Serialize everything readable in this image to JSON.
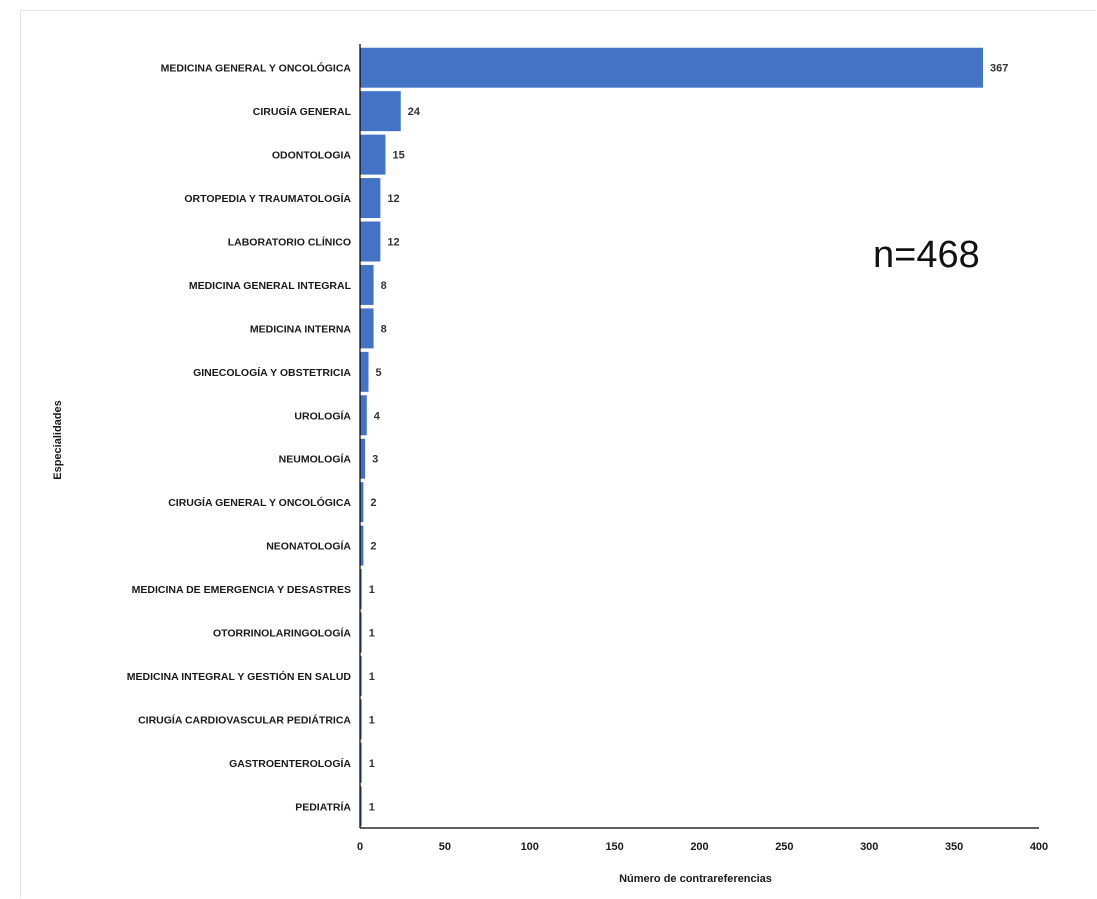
{
  "chart_data": {
    "type": "bar",
    "orientation": "horizontal",
    "categories": [
      "MEDICINA GENERAL Y ONCOLÓGICA",
      "CIRUGÍA GENERAL",
      "ODONTOLOGIA",
      "ORTOPEDIA Y TRAUMATOLOGÍA",
      "LABORATORIO CLÍNICO",
      "MEDICINA GENERAL INTEGRAL",
      "MEDICINA INTERNA",
      "GINECOLOGÍA Y OBSTETRICIA",
      "UROLOGÍA",
      "NEUMOLOGÍA",
      "CIRUGÍA GENERAL Y ONCOLÓGICA",
      "NEONATOLOGÍA",
      "MEDICINA DE EMERGENCIA Y DESASTRES",
      "OTORRINOLARINGOLOGÍA",
      "MEDICINA INTEGRAL Y GESTIÓN EN SALUD",
      "CIRUGÍA CARDIOVASCULAR PEDIÁTRICA",
      "GASTROENTEROLOGÍA",
      "PEDIATRÍA"
    ],
    "values": [
      367,
      24,
      15,
      12,
      12,
      8,
      8,
      5,
      4,
      3,
      2,
      2,
      1,
      1,
      1,
      1,
      1,
      1
    ],
    "xlabel": "Número de contrareferencias",
    "ylabel": "Especialidades",
    "xlim": [
      0,
      400
    ],
    "xticks": [
      0,
      50,
      100,
      150,
      200,
      250,
      300,
      350,
      400
    ],
    "annotation": "n=468",
    "bar_color": "#4472c4",
    "grid": false,
    "legend": "none"
  }
}
